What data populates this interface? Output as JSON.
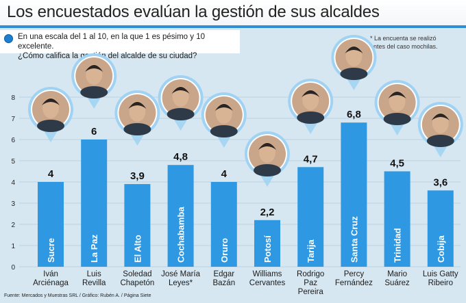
{
  "header": {
    "title": "Los encuestados evalúan la gestión de sus alcaldes"
  },
  "question": {
    "line1": "En una escala del 1 al 10, en la que 1 es pésimo y 10 excelente.",
    "line2": "¿Cómo califica la gestión del alcalde de su ciudad?"
  },
  "note": {
    "line1": "* La encuenta se realizó",
    "line2": "antes del caso mochilas."
  },
  "source": "Fuente: Mercados y Muestras SRL / Gráfico: Rubén A. / Página Siete",
  "colors": {
    "bar": "#2f98e2",
    "grid": "#bcd2e2",
    "bubble": "#9fd2f3"
  },
  "chart_data": {
    "type": "bar",
    "title": "Los encuestados evalúan la gestión de sus alcaldes",
    "xlabel": "",
    "ylabel": "",
    "ylim": [
      0,
      8
    ],
    "yticks": [
      0,
      1,
      2,
      3,
      4,
      5,
      6,
      7,
      8
    ],
    "grid": true,
    "categories": [
      "Sucre",
      "La Paz",
      "El Alto",
      "Cochabamba",
      "Oruro",
      "Potosí",
      "Tarija",
      "Santa Cruz",
      "Trinidad",
      "Cobija"
    ],
    "values": [
      4,
      6,
      3.9,
      4.8,
      4,
      2.2,
      4.7,
      6.8,
      4.5,
      3.6
    ],
    "value_labels": [
      "4",
      "6",
      "3,9",
      "4,8",
      "4",
      "2,2",
      "4,7",
      "6,8",
      "4,5",
      "3,6"
    ],
    "mayors": [
      [
        "Iván",
        "Arciénaga"
      ],
      [
        "Luis",
        "Revilla"
      ],
      [
        "Soledad",
        "Chapetón"
      ],
      [
        "José María",
        "Leyes*"
      ],
      [
        "Edgar",
        "Bazán"
      ],
      [
        "Williams",
        "Cervantes"
      ],
      [
        "Rodrigo",
        "Paz",
        "Pereira"
      ],
      [
        "Percy",
        "Fernández"
      ],
      [
        "Mario",
        "Suárez"
      ],
      [
        "Luis Gatty",
        "Ribeiro"
      ]
    ]
  }
}
